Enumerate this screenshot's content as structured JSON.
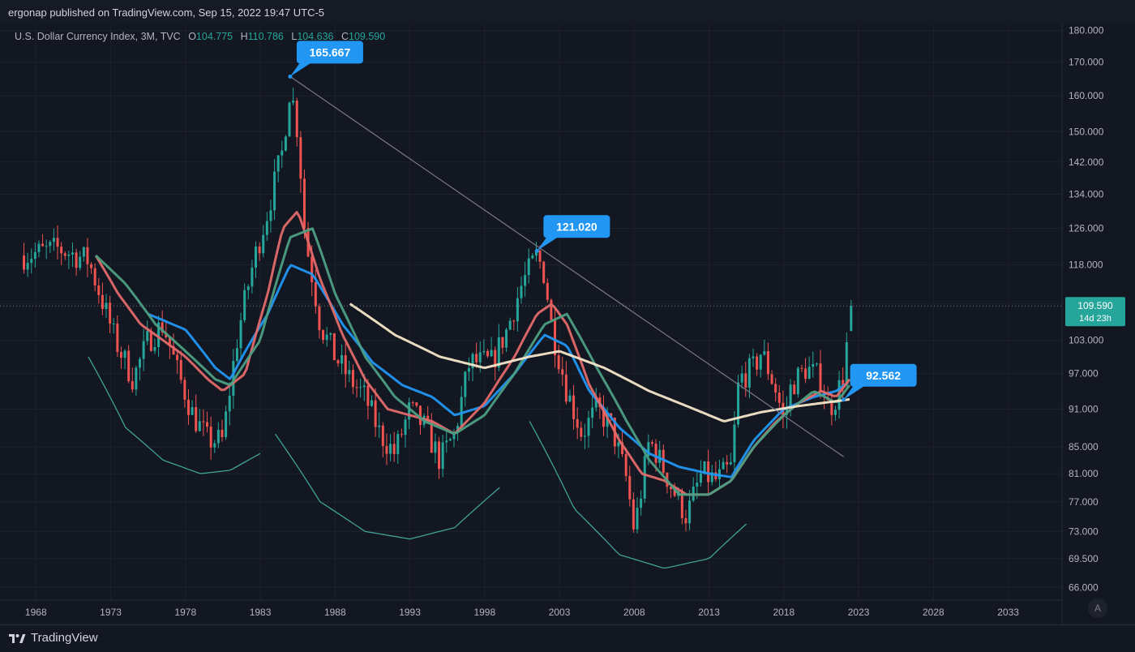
{
  "header": {
    "publisher": "ergonap published on TradingView.com, Sep 15, 2022 19:47 UTC-5"
  },
  "legend": {
    "symbol": "U.S. Dollar Currency Index, 3M, TVC",
    "open_label": "O",
    "open": "104.775",
    "high_label": "H",
    "high": "110.786",
    "low_label": "L",
    "low": "104.636",
    "close_label": "C",
    "close": "109.590"
  },
  "footer": {
    "brand": "TradingView"
  },
  "auto_label": "A",
  "colors": {
    "background": "#131722",
    "grid": "#1e222d",
    "up": "#26a69a",
    "down": "#ef5350",
    "ma_blue": "#2196f3",
    "ma_red": "#e36a6a",
    "ma_green": "#4c9f83",
    "ma_cream": "#f3e6c8",
    "annotation": "#2196f3",
    "arc": "#3fa296",
    "trendline": "#787b86"
  },
  "chart_data": {
    "type": "line",
    "title": "U.S. Dollar Currency Index, 3M, TVC",
    "xlabel": "",
    "ylabel": "",
    "price_scale": "log",
    "ylim": [
      64.5,
      182
    ],
    "xlim": [
      1965.6,
      2036.6
    ],
    "x_ticks": [
      "1968",
      "1973",
      "1978",
      "1983",
      "1988",
      "1993",
      "1998",
      "2003",
      "2008",
      "2013",
      "2018",
      "2023",
      "2028",
      "2033"
    ],
    "y_ticks": [
      "180.000",
      "170.000",
      "160.000",
      "150.000",
      "142.000",
      "134.000",
      "126.000",
      "118.000",
      "110.000",
      "103.000",
      "97.000",
      "91.000",
      "85.000",
      "81.000",
      "77.000",
      "73.000",
      "69.500",
      "66.000"
    ],
    "grid": true,
    "last_price": {
      "value": "109.590",
      "countdown": "14d 23h"
    },
    "annotations": [
      {
        "label": "165.667",
        "x": 1985.0,
        "y": 165.667
      },
      {
        "label": "121.020",
        "x": 2001.5,
        "y": 121.02
      },
      {
        "label": "92.562",
        "x": 2022.0,
        "y": 92.562
      }
    ],
    "trendline": {
      "x": [
        1985.0,
        2022.0
      ],
      "y": [
        165.667,
        83.5
      ]
    },
    "price_path": {
      "x": [
        1967.2,
        1969.5,
        1971.5,
        1972.5,
        1973.3,
        1974.5,
        1975.5,
        1976.5,
        1977.5,
        1978.5,
        1979.5,
        1980.5,
        1981.5,
        1982.5,
        1983.5,
        1984.5,
        1985.0,
        1985.5,
        1986.0,
        1987.0,
        1988.0,
        1989.0,
        1990.0,
        1991.0,
        1992.0,
        1993.0,
        1994.0,
        1995.0,
        1996.0,
        1997.0,
        1998.5,
        1999.5,
        2000.5,
        2001.5,
        2002.0,
        2002.5,
        2003.5,
        2004.5,
        2005.5,
        2006.5,
        2007.5,
        2008.0,
        2008.5,
        2009.0,
        2009.5,
        2010.5,
        2011.5,
        2012.5,
        2013.5,
        2014.5,
        2015.0,
        2016.0,
        2016.5,
        2017.5,
        2018.0,
        2018.5,
        2019.5,
        2020.5,
        2021.0,
        2021.5,
        2022.0,
        2022.5
      ],
      "y": [
        120,
        121.5,
        119,
        110,
        103,
        96,
        103,
        106,
        97,
        90,
        86,
        86,
        104,
        118,
        130,
        145,
        163,
        150,
        124,
        106,
        100,
        96,
        93,
        87,
        84,
        91,
        88,
        83,
        87,
        99,
        99,
        105,
        114,
        120,
        116,
        105,
        94,
        87,
        91,
        88,
        80,
        73,
        79,
        86,
        84,
        79,
        75,
        81,
        80,
        82,
        96,
        98,
        101,
        94,
        89,
        95,
        98,
        96,
        91,
        93,
        97,
        109.59
      ]
    },
    "series": [
      {
        "x": [
          1975.5,
          1978.0,
          1980.0,
          1981.0,
          1982.0,
          1983.5,
          1985.0,
          1986.5,
          1988.5,
          1990.5,
          1992.5,
          1994.5,
          1996.0,
          1998.0,
          2000.0,
          2002.0,
          2003.5,
          2005.0,
          2007.0,
          2009.0,
          2011.0,
          2013.0,
          2014.5,
          2016.0,
          2018.0,
          2020.0,
          2021.5,
          2022.3
        ],
        "y": [
          108,
          105,
          98,
          96,
          101,
          108,
          118,
          116,
          106,
          99,
          95,
          93,
          90,
          91.5,
          97,
          104,
          102,
          94,
          88,
          84,
          82,
          81,
          80.5,
          86,
          91,
          93,
          94,
          95.5
        ]
      },
      {
        "x": [
          1972.0,
          1973.5,
          1975.0,
          1976.5,
          1978.0,
          1979.5,
          1980.5,
          1982.0,
          1983.5,
          1984.5,
          1985.5,
          1987.0,
          1988.5,
          1990.0,
          1991.5,
          1993.0,
          1994.5,
          1996.0,
          1998.0,
          2000.0,
          2001.5,
          2002.5,
          2003.5,
          2005.0,
          2007.0,
          2008.5,
          2010.0,
          2011.5,
          2013.0,
          2014.5,
          2016.0,
          2017.5,
          2019.0,
          2020.5,
          2021.5,
          2022.4
        ],
        "y": [
          120,
          112,
          106,
          103,
          100,
          96,
          94,
          97,
          112,
          126,
          130,
          115,
          104,
          96,
          91,
          90,
          89,
          87,
          92,
          100,
          108,
          110,
          106,
          95,
          86,
          81,
          80,
          78,
          78,
          80,
          85,
          89,
          92,
          94,
          93,
          96
        ]
      },
      {
        "x": [
          1972.0,
          1974.0,
          1976.0,
          1978.0,
          1980.0,
          1981.0,
          1983.0,
          1985.0,
          1986.5,
          1988.0,
          1990.0,
          1992.0,
          1994.0,
          1996.0,
          1998.0,
          2000.0,
          2002.0,
          2003.5,
          2005.5,
          2007.5,
          2009.0,
          2011.0,
          2013.0,
          2014.5,
          2016.0,
          2018.0,
          2020.0,
          2021.5,
          2022.4
        ],
        "y": [
          120,
          114,
          106,
          101,
          96,
          95,
          103,
          124,
          126,
          112,
          100,
          93,
          89,
          87,
          90,
          97,
          106,
          108,
          98,
          89,
          83,
          78,
          78,
          80,
          85,
          90,
          94,
          92,
          95
        ]
      },
      {
        "x": [
          1989.0,
          1992.0,
          1995.0,
          1998.0,
          2001.0,
          2003.0,
          2006.0,
          2009.0,
          2012.0,
          2014.0,
          2016.5,
          2019.0,
          2021.5,
          2022.4
        ],
        "y": [
          110,
          104,
          100,
          98,
          100,
          101,
          98,
          94,
          91,
          89,
          90.5,
          91.5,
          92.3,
          92.6
        ]
      }
    ],
    "arcs": [
      {
        "x": [
          1971.5,
          1974.0,
          1976.5,
          1979.0,
          1981.0,
          1983.0
        ],
        "y": [
          100,
          88,
          83,
          81,
          81.5,
          84
        ]
      },
      {
        "x": [
          1984.0,
          1987.0,
          1990.0,
          1993.0,
          1996.0,
          1999.0
        ],
        "y": [
          87,
          77,
          73,
          72,
          73.5,
          79
        ]
      },
      {
        "x": [
          2001.0,
          2004.0,
          2007.0,
          2010.0,
          2013.0,
          2015.5
        ],
        "y": [
          89,
          76,
          70,
          68.3,
          69.5,
          74
        ]
      }
    ]
  }
}
